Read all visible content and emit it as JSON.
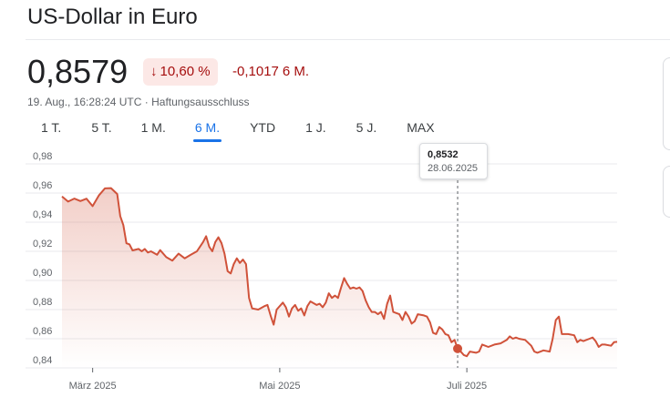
{
  "header": {
    "title": "US-Dollar in Euro",
    "price": "0,8579",
    "change_percent": "10,60 %",
    "change_abs": "-0,1017",
    "change_period": "6 M.",
    "timestamp": "19. Aug., 16:28:24 UTC",
    "separator": "·",
    "disclaimer": "Haftungsausschluss"
  },
  "tabs": [
    {
      "label": "1 T."
    },
    {
      "label": "5 T."
    },
    {
      "label": "1 M."
    },
    {
      "label": "6 M.",
      "active": true
    },
    {
      "label": "YTD"
    },
    {
      "label": "1 J."
    },
    {
      "label": "5 J."
    },
    {
      "label": "MAX"
    }
  ],
  "tooltip": {
    "value": "0,8532",
    "date": "28.06.2025"
  },
  "colors": {
    "negative": "#a50e0e",
    "badge_bg": "#fce8e6",
    "line": "#d0523a",
    "accent": "#1a73e8"
  },
  "chart_data": {
    "type": "area",
    "title": "",
    "xlabel": "",
    "ylabel": "",
    "x_range": [
      "2025-02-19",
      "2025-08-19"
    ],
    "ylim": [
      0.84,
      0.98
    ],
    "y_ticks": [
      "0,84",
      "0,86",
      "0,88",
      "0,90",
      "0,92",
      "0,94",
      "0,96",
      "0,98"
    ],
    "x_ticks": [
      {
        "label": "März 2025",
        "date": "2025-03-01"
      },
      {
        "label": "Mai 2025",
        "date": "2025-05-01"
      },
      {
        "label": "Juli 2025",
        "date": "2025-07-01"
      }
    ],
    "grid": "horizontal",
    "highlight": {
      "date": "2025-06-28",
      "value": 0.8532
    },
    "series": [
      {
        "points": [
          [
            "2025-02-19",
            0.9577
          ],
          [
            "2025-02-21",
            0.9541
          ],
          [
            "2025-02-23",
            0.9562
          ],
          [
            "2025-02-25",
            0.9545
          ],
          [
            "2025-02-27",
            0.9561
          ],
          [
            "2025-03-01",
            0.951
          ],
          [
            "2025-03-03",
            0.9583
          ],
          [
            "2025-03-05",
            0.9632
          ],
          [
            "2025-03-07",
            0.9634
          ],
          [
            "2025-03-09",
            0.9593
          ],
          [
            "2025-03-10",
            0.9442
          ],
          [
            "2025-03-11",
            0.938
          ],
          [
            "2025-03-12",
            0.9255
          ],
          [
            "2025-03-13",
            0.9248
          ],
          [
            "2025-03-14",
            0.9206
          ],
          [
            "2025-03-16",
            0.9216
          ],
          [
            "2025-03-17",
            0.92
          ],
          [
            "2025-03-18",
            0.9216
          ],
          [
            "2025-03-19",
            0.9192
          ],
          [
            "2025-03-20",
            0.92
          ],
          [
            "2025-03-22",
            0.9176
          ],
          [
            "2025-03-23",
            0.9208
          ],
          [
            "2025-03-25",
            0.916
          ],
          [
            "2025-03-27",
            0.9136
          ],
          [
            "2025-03-29",
            0.9184
          ],
          [
            "2025-03-31",
            0.9152
          ],
          [
            "2025-04-02",
            0.9176
          ],
          [
            "2025-04-04",
            0.92
          ],
          [
            "2025-04-05",
            0.9232
          ],
          [
            "2025-04-06",
            0.9264
          ],
          [
            "2025-04-07",
            0.9304
          ],
          [
            "2025-04-08",
            0.9232
          ],
          [
            "2025-04-09",
            0.92
          ],
          [
            "2025-04-10",
            0.9264
          ],
          [
            "2025-04-11",
            0.9296
          ],
          [
            "2025-04-12",
            0.9256
          ],
          [
            "2025-04-13",
            0.9184
          ],
          [
            "2025-04-14",
            0.9064
          ],
          [
            "2025-04-15",
            0.9048
          ],
          [
            "2025-04-16",
            0.9112
          ],
          [
            "2025-04-17",
            0.9152
          ],
          [
            "2025-04-18",
            0.912
          ],
          [
            "2025-04-19",
            0.9144
          ],
          [
            "2025-04-20",
            0.9112
          ],
          [
            "2025-04-21",
            0.888
          ],
          [
            "2025-04-22",
            0.8808
          ],
          [
            "2025-04-24",
            0.88
          ],
          [
            "2025-04-26",
            0.8824
          ],
          [
            "2025-04-27",
            0.8832
          ],
          [
            "2025-04-28",
            0.876
          ],
          [
            "2025-04-29",
            0.8696
          ],
          [
            "2025-04-30",
            0.88
          ],
          [
            "2025-05-02",
            0.8848
          ],
          [
            "2025-05-03",
            0.8816
          ],
          [
            "2025-05-04",
            0.8752
          ],
          [
            "2025-05-05",
            0.8808
          ],
          [
            "2025-05-06",
            0.8832
          ],
          [
            "2025-05-07",
            0.8792
          ],
          [
            "2025-05-08",
            0.8808
          ],
          [
            "2025-05-09",
            0.876
          ],
          [
            "2025-05-10",
            0.8824
          ],
          [
            "2025-05-11",
            0.8856
          ],
          [
            "2025-05-13",
            0.8832
          ],
          [
            "2025-05-14",
            0.884
          ],
          [
            "2025-05-15",
            0.8816
          ],
          [
            "2025-05-16",
            0.8848
          ],
          [
            "2025-05-17",
            0.8912
          ],
          [
            "2025-05-18",
            0.888
          ],
          [
            "2025-05-19",
            0.8896
          ],
          [
            "2025-05-20",
            0.888
          ],
          [
            "2025-05-21",
            0.8952
          ],
          [
            "2025-05-22",
            0.9016
          ],
          [
            "2025-05-23",
            0.8976
          ],
          [
            "2025-05-24",
            0.8944
          ],
          [
            "2025-05-25",
            0.8952
          ],
          [
            "2025-05-26",
            0.8944
          ],
          [
            "2025-05-27",
            0.8952
          ],
          [
            "2025-05-28",
            0.8928
          ],
          [
            "2025-05-29",
            0.8864
          ],
          [
            "2025-05-30",
            0.8816
          ],
          [
            "2025-05-31",
            0.8784
          ],
          [
            "2025-06-01",
            0.8784
          ],
          [
            "2025-06-02",
            0.8768
          ],
          [
            "2025-06-03",
            0.8784
          ],
          [
            "2025-06-04",
            0.8736
          ],
          [
            "2025-06-05",
            0.884
          ],
          [
            "2025-06-06",
            0.8896
          ],
          [
            "2025-06-07",
            0.8784
          ],
          [
            "2025-06-08",
            0.8776
          ],
          [
            "2025-06-09",
            0.8768
          ],
          [
            "2025-06-10",
            0.8728
          ],
          [
            "2025-06-11",
            0.8784
          ],
          [
            "2025-06-12",
            0.8752
          ],
          [
            "2025-06-13",
            0.8704
          ],
          [
            "2025-06-14",
            0.872
          ],
          [
            "2025-06-15",
            0.8768
          ],
          [
            "2025-06-17",
            0.876
          ],
          [
            "2025-06-18",
            0.8752
          ],
          [
            "2025-06-19",
            0.8712
          ],
          [
            "2025-06-20",
            0.864
          ],
          [
            "2025-06-21",
            0.8632
          ],
          [
            "2025-06-22",
            0.868
          ],
          [
            "2025-06-23",
            0.8664
          ],
          [
            "2025-06-24",
            0.8632
          ],
          [
            "2025-06-25",
            0.8624
          ],
          [
            "2025-06-26",
            0.8576
          ],
          [
            "2025-06-27",
            0.8592
          ],
          [
            "2025-06-28",
            0.8532
          ],
          [
            "2025-06-29",
            0.8512
          ],
          [
            "2025-06-30",
            0.8488
          ],
          [
            "2025-07-01",
            0.848
          ],
          [
            "2025-07-02",
            0.8512
          ],
          [
            "2025-07-04",
            0.8504
          ],
          [
            "2025-07-05",
            0.8512
          ],
          [
            "2025-07-06",
            0.856
          ],
          [
            "2025-07-08",
            0.8544
          ],
          [
            "2025-07-10",
            0.856
          ],
          [
            "2025-07-12",
            0.8568
          ],
          [
            "2025-07-14",
            0.8592
          ],
          [
            "2025-07-15",
            0.8616
          ],
          [
            "2025-07-16",
            0.86
          ],
          [
            "2025-07-17",
            0.8608
          ],
          [
            "2025-07-18",
            0.86
          ],
          [
            "2025-07-20",
            0.8592
          ],
          [
            "2025-07-22",
            0.8552
          ],
          [
            "2025-07-23",
            0.8512
          ],
          [
            "2025-07-24",
            0.8504
          ],
          [
            "2025-07-26",
            0.852
          ],
          [
            "2025-07-28",
            0.8512
          ],
          [
            "2025-07-29",
            0.86
          ],
          [
            "2025-07-30",
            0.8728
          ],
          [
            "2025-07-31",
            0.8752
          ],
          [
            "2025-08-01",
            0.8632
          ],
          [
            "2025-08-03",
            0.8632
          ],
          [
            "2025-08-05",
            0.8624
          ],
          [
            "2025-08-06",
            0.8576
          ],
          [
            "2025-08-07",
            0.8592
          ],
          [
            "2025-08-08",
            0.8584
          ],
          [
            "2025-08-10",
            0.86
          ],
          [
            "2025-08-11",
            0.8608
          ],
          [
            "2025-08-12",
            0.8584
          ],
          [
            "2025-08-13",
            0.8544
          ],
          [
            "2025-08-14",
            0.856
          ],
          [
            "2025-08-15",
            0.856
          ],
          [
            "2025-08-17",
            0.8552
          ],
          [
            "2025-08-18",
            0.8576
          ],
          [
            "2025-08-19",
            0.8579
          ]
        ]
      }
    ]
  }
}
